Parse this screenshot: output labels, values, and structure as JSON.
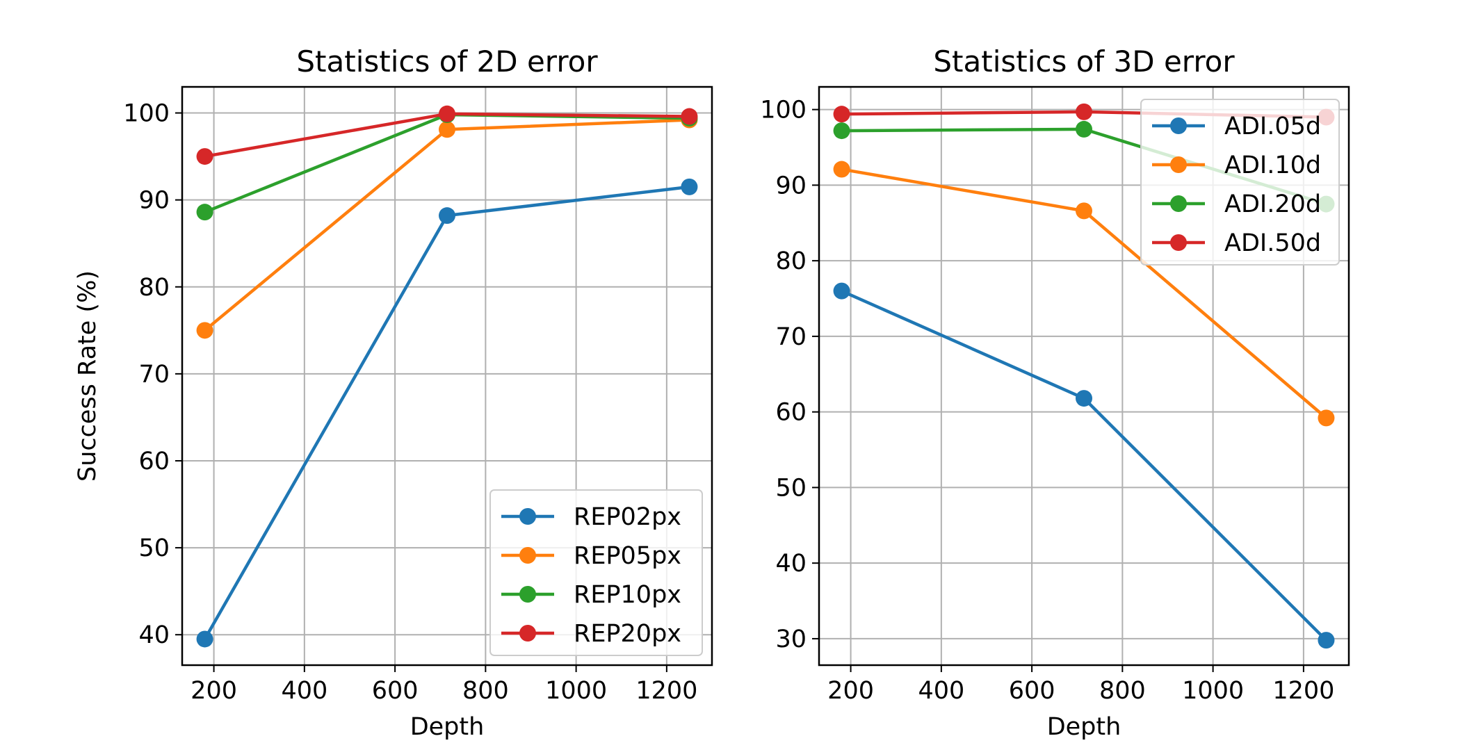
{
  "chart_data": [
    {
      "type": "line",
      "title": "Statistics of 2D error",
      "xlabel": "Depth",
      "ylabel": "Success Rate (%)",
      "xlim": [
        130,
        1300
      ],
      "ylim": [
        36.5,
        103
      ],
      "xticks": [
        200,
        400,
        600,
        800,
        1000,
        1200
      ],
      "yticks": [
        40,
        50,
        60,
        70,
        80,
        90,
        100
      ],
      "grid": true,
      "legend_position": "lower-right",
      "x": [
        180,
        715,
        1250
      ],
      "series": [
        {
          "name": "REP02px",
          "values": [
            39.5,
            88.2,
            91.5
          ],
          "color": "#1f77b4"
        },
        {
          "name": "REP05px",
          "values": [
            75.0,
            98.1,
            99.2
          ],
          "color": "#ff7f0e"
        },
        {
          "name": "REP10px",
          "values": [
            88.6,
            99.8,
            99.4
          ],
          "color": "#2ca02c"
        },
        {
          "name": "REP20px",
          "values": [
            95.0,
            99.9,
            99.6
          ],
          "color": "#d62728"
        }
      ]
    },
    {
      "type": "line",
      "title": "Statistics of 3D error",
      "xlabel": "Depth",
      "ylabel": "",
      "xlim": [
        130,
        1300
      ],
      "ylim": [
        26.5,
        103
      ],
      "xticks": [
        200,
        400,
        600,
        800,
        1000,
        1200
      ],
      "yticks": [
        30,
        40,
        50,
        60,
        70,
        80,
        90,
        100
      ],
      "grid": true,
      "legend_position": "upper-right",
      "x": [
        180,
        715,
        1250
      ],
      "series": [
        {
          "name": "ADI.05d",
          "values": [
            76.0,
            61.8,
            29.8
          ],
          "color": "#1f77b4"
        },
        {
          "name": "ADI.10d",
          "values": [
            92.1,
            86.6,
            59.2
          ],
          "color": "#ff7f0e"
        },
        {
          "name": "ADI.20d",
          "values": [
            97.2,
            97.4,
            87.5
          ],
          "color": "#2ca02c"
        },
        {
          "name": "ADI.50d",
          "values": [
            99.4,
            99.7,
            99.0
          ],
          "color": "#d62728"
        }
      ]
    }
  ]
}
